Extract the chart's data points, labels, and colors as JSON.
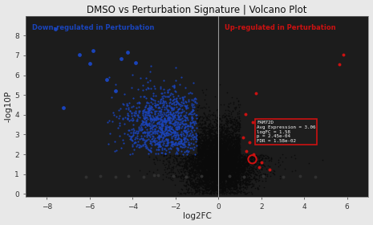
{
  "title": "DMSO vs Perturbation Signature | Volcano Plot",
  "xlabel": "log2FC",
  "ylabel": "-log10P",
  "xlim": [
    -9,
    7
  ],
  "ylim": [
    -0.15,
    9
  ],
  "xticks": [
    -8,
    -6,
    -4,
    -2,
    0,
    2,
    4,
    6
  ],
  "yticks": [
    0,
    1,
    2,
    3,
    4,
    5,
    6,
    7,
    8
  ],
  "bg_color": "#e8e8e8",
  "plot_bg": "#1c1c1c",
  "down_label": "Down-regulated in Perturbation",
  "up_label": "Up-regulated in Perturbation",
  "down_color": "#1a44bb",
  "up_color": "#cc1111",
  "ns_color": "#0a0a0a",
  "tooltip_gene": "FAM72D",
  "tooltip_avg": 3.06,
  "tooltip_logfc": 1.58,
  "tooltip_p": "2.45e-04",
  "tooltip_fdr": "1.58e-02",
  "tooltip_anchor_x": 1.58,
  "tooltip_anchor_y": 3.61,
  "highlighted_x": 1.58,
  "highlighted_y": 1.75,
  "seed": 123,
  "n_black": 8000,
  "n_blue": 1200,
  "n_red_scatter": 15,
  "fc_threshold": 1.0,
  "p_threshold": 2.0,
  "red_specific": [
    [
      1.58,
      3.61
    ],
    [
      1.75,
      5.1
    ],
    [
      5.82,
      7.05
    ],
    [
      5.65,
      6.55
    ],
    [
      1.25,
      4.05
    ],
    [
      1.45,
      2.6
    ],
    [
      1.3,
      2.15
    ],
    [
      1.65,
      2.0
    ],
    [
      2.0,
      1.6
    ],
    [
      1.9,
      1.35
    ],
    [
      1.15,
      2.85
    ],
    [
      2.4,
      1.25
    ]
  ],
  "blue_outliers": [
    [
      -7.6,
      8.35
    ],
    [
      -7.25,
      4.35
    ],
    [
      -6.5,
      7.05
    ],
    [
      -6.0,
      6.6
    ],
    [
      -5.85,
      7.25
    ],
    [
      -4.55,
      6.85
    ],
    [
      -4.25,
      7.15
    ],
    [
      -3.85,
      6.65
    ],
    [
      -4.8,
      5.2
    ],
    [
      -5.2,
      5.8
    ]
  ],
  "black_low_scattered": [
    [
      -5.5,
      0.9
    ],
    [
      -4.8,
      0.85
    ],
    [
      -4.2,
      0.92
    ],
    [
      -3.5,
      0.88
    ],
    [
      -2.8,
      0.95
    ],
    [
      -2.1,
      0.9
    ],
    [
      -1.5,
      0.88
    ],
    [
      -0.8,
      0.92
    ],
    [
      0.5,
      0.9
    ],
    [
      1.2,
      0.85
    ],
    [
      2.1,
      0.9
    ],
    [
      3.0,
      0.88
    ],
    [
      3.8,
      0.92
    ],
    [
      4.5,
      0.88
    ],
    [
      -6.2,
      0.87
    ],
    [
      -3.0,
      0.93
    ]
  ]
}
